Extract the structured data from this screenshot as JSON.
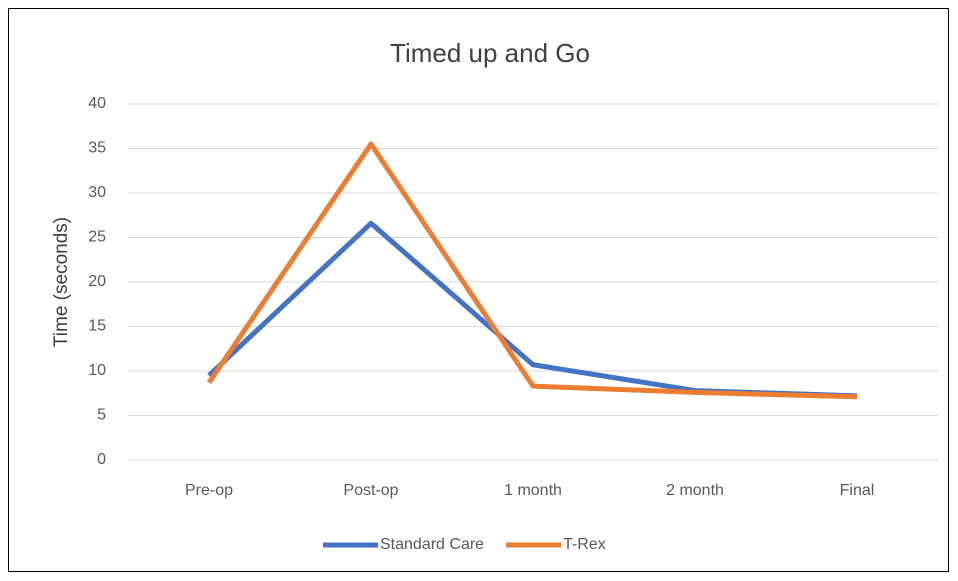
{
  "chart_data": {
    "type": "line",
    "title": "Timed up and Go",
    "y_label": "Time (seconds)",
    "categories": [
      "Pre-op",
      "Post-op",
      "1 month",
      "2 month",
      "Final"
    ],
    "series": [
      {
        "name": "Standard Care",
        "color": "#4472c4",
        "values": [
          9.5,
          26.6,
          10.7,
          7.8,
          7.2
        ]
      },
      {
        "name": "T-Rex",
        "color": "#ed7d31",
        "values": [
          8.7,
          35.5,
          8.3,
          7.6,
          7.1
        ]
      }
    ],
    "ylim": [
      0,
      40
    ],
    "yticks": [
      0,
      5,
      10,
      15,
      20,
      25,
      30,
      35,
      40
    ],
    "grid": true,
    "legend": "bottom"
  }
}
